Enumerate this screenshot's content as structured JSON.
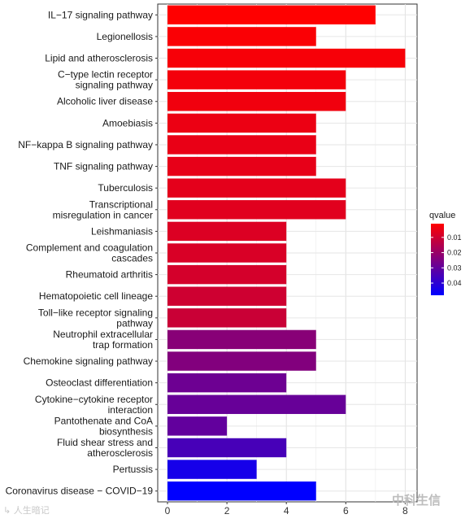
{
  "chart_data": {
    "type": "bar",
    "orientation": "horizontal",
    "categories": [
      "IL−17 signaling pathway",
      "Legionellosis",
      "Lipid and atherosclerosis",
      "C−type lectin receptor\nsignaling pathway",
      "Alcoholic liver disease",
      "Amoebiasis",
      "NF−kappa B signaling pathway",
      "TNF signaling pathway",
      "Tuberculosis",
      "Transcriptional\nmisregulation in cancer",
      "Leishmaniasis",
      "Complement and coagulation\ncascades",
      "Rheumatoid arthritis",
      "Hematopoietic cell lineage",
      "Toll−like receptor signaling\npathway",
      "Neutrophil extracellular\ntrap formation",
      "Chemokine signaling pathway",
      "Osteoclast differentiation",
      "Cytokine−cytokine receptor\ninteraction",
      "Pantothenate and CoA\nbiosynthesis",
      "Fluid shear stress and\natherosclerosis",
      "Pertussis",
      "Coronavirus disease − COVID−19"
    ],
    "values": [
      7,
      5,
      8,
      6,
      6,
      5,
      5,
      5,
      6,
      6,
      4,
      4,
      4,
      4,
      4,
      5,
      5,
      4,
      6,
      2,
      4,
      3,
      5
    ],
    "qvalues": [
      0.001,
      0.002,
      0.0025,
      0.003,
      0.0035,
      0.0045,
      0.005,
      0.0055,
      0.006,
      0.0065,
      0.0075,
      0.008,
      0.009,
      0.01,
      0.011,
      0.023,
      0.024,
      0.028,
      0.029,
      0.03,
      0.035,
      0.044,
      0.048
    ],
    "xlim": [
      0,
      8.4
    ],
    "xticks": [
      0,
      2,
      4,
      6,
      8
    ],
    "xlabel": "",
    "ylabel": "",
    "title": "",
    "grid": true,
    "legend": {
      "title": "qvalue",
      "placement": "right",
      "range": [
        0.001,
        0.048
      ],
      "ticks": [
        0.01,
        0.02,
        0.03,
        0.04
      ],
      "tick_labels": [
        "0.01",
        "0.02",
        "0.03",
        "0.04"
      ],
      "color_low_q": "#ff0000",
      "color_high_q": "#0000ff"
    }
  },
  "watermarks": {
    "left": "↳ 人生暗记",
    "right": "中科生信"
  }
}
